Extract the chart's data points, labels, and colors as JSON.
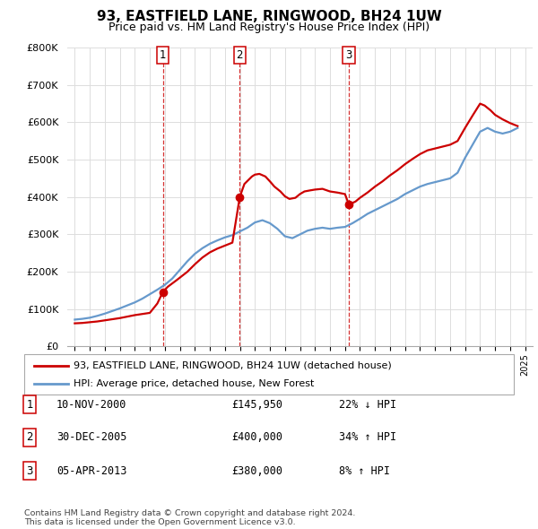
{
  "title": "93, EASTFIELD LANE, RINGWOOD, BH24 1UW",
  "subtitle": "Price paid vs. HM Land Registry's House Price Index (HPI)",
  "ylabel_ticks": [
    "£0",
    "£100K",
    "£200K",
    "£300K",
    "£400K",
    "£500K",
    "£600K",
    "£700K",
    "£800K"
  ],
  "ytick_values": [
    0,
    100000,
    200000,
    300000,
    400000,
    500000,
    600000,
    700000,
    800000
  ],
  "ylim": [
    0,
    800000
  ],
  "xlim_start": 1994.5,
  "xlim_end": 2025.5,
  "sales": [
    {
      "label": "1",
      "date_str": "10-NOV-2000",
      "date_x": 2000.87,
      "price": 145950
    },
    {
      "label": "2",
      "date_str": "30-DEC-2005",
      "date_x": 2005.99,
      "price": 400000
    },
    {
      "label": "3",
      "date_str": "05-APR-2013",
      "date_x": 2013.26,
      "price": 380000
    }
  ],
  "legend_entry_red": "93, EASTFIELD LANE, RINGWOOD, BH24 1UW (detached house)",
  "legend_entry_blue": "HPI: Average price, detached house, New Forest",
  "footnote": "Contains HM Land Registry data © Crown copyright and database right 2024.\nThis data is licensed under the Open Government Licence v3.0.",
  "table_rows": [
    {
      "num": "1",
      "date": "10-NOV-2000",
      "price": "£145,950",
      "pct_hpi": "22% ↓ HPI"
    },
    {
      "num": "2",
      "date": "30-DEC-2005",
      "price": "£400,000",
      "pct_hpi": "34% ↑ HPI"
    },
    {
      "num": "3",
      "date": "05-APR-2013",
      "price": "£380,000",
      "pct_hpi": "8% ↑ HPI"
    }
  ],
  "background_color": "#ffffff",
  "grid_color": "#dddddd",
  "property_color": "#cc0000",
  "hpi_color": "#6699cc",
  "dashed_line_color": "#cc0000",
  "title_fontsize": 11,
  "subtitle_fontsize": 9
}
